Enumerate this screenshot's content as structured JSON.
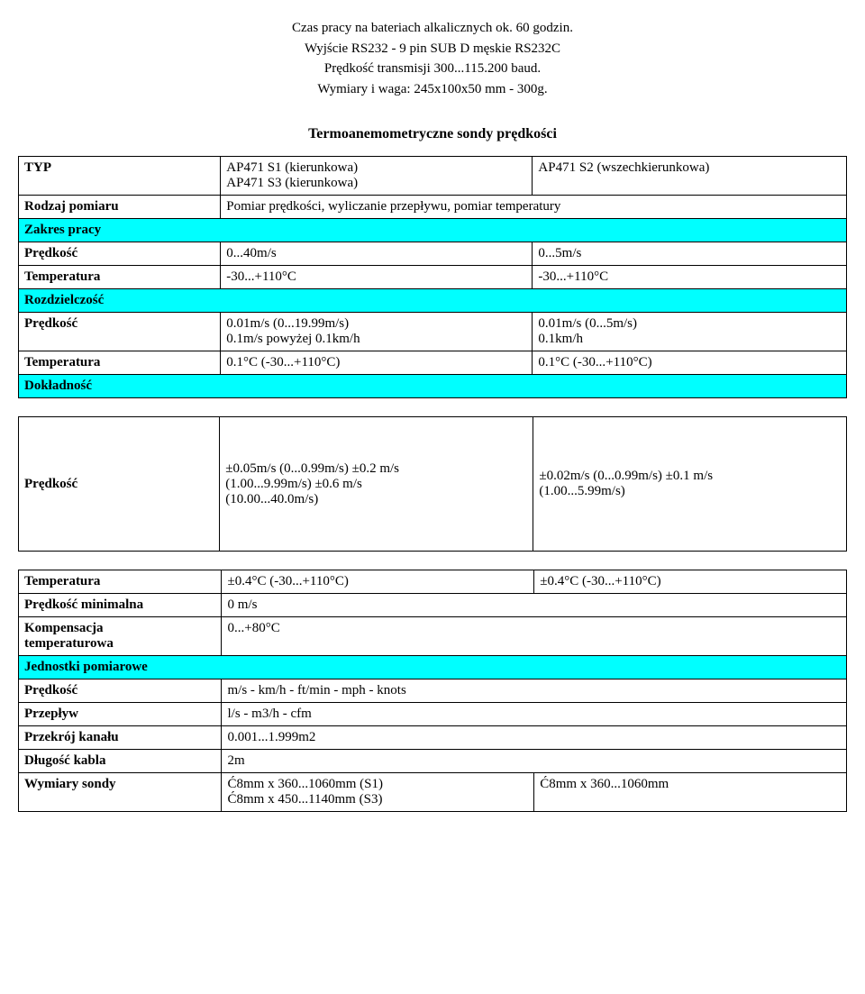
{
  "intro": {
    "line1": "Czas pracy na bateriach alkalicznych ok. 60 godzin.",
    "line2": "Wyjście RS232 - 9 pin SUB D męskie RS232C",
    "line3": "Prędkość transmisji 300...115.200 baud.",
    "line4": "Wymiary i waga: 245x100x50 mm - 300g."
  },
  "sectionTitle": "Termoanemometryczne sondy prędkości",
  "table1": {
    "r1": {
      "label": "TYP",
      "c2a": "AP471 S1 (kierunkowa)",
      "c2b": "AP471 S3 (kierunkowa)",
      "c3": "AP471 S2 (wszechkierunkowa)"
    },
    "r2": {
      "label": "Rodzaj pomiaru",
      "c2": "Pomiar prędkości, wyliczanie przepływu, pomiar temperatury"
    },
    "r3": {
      "label": "Zakres pracy"
    },
    "r4": {
      "label": "Prędkość",
      "c2": "0...40m/s",
      "c3": "0...5m/s"
    },
    "r5": {
      "label": "Temperatura",
      "c2": "-30...+110°C",
      "c3": "-30...+110°C"
    },
    "r6": {
      "label": "Rozdzielczość"
    },
    "r7": {
      "label": "Prędkość",
      "c2a": "0.01m/s (0...19.99m/s)",
      "c2b": "0.1m/s powyżej 0.1km/h",
      "c3a": "0.01m/s (0...5m/s)",
      "c3b": "0.1km/h"
    },
    "r8": {
      "label": "Temperatura",
      "c2": "0.1°C (-30...+110°C)",
      "c3": "0.1°C (-30...+110°C)"
    },
    "r9": {
      "label": "Dokładność"
    }
  },
  "table2": {
    "r1": {
      "label": "Prędkość",
      "c2a": "±0.05m/s (0...0.99m/s) ±0.2 m/s",
      "c2b": "(1.00...9.99m/s) ±0.6 m/s",
      "c2c": "(10.00...40.0m/s)",
      "c3a": "±0.02m/s (0...0.99m/s) ±0.1 m/s",
      "c3b": "(1.00...5.99m/s)"
    }
  },
  "table3": {
    "r1": {
      "label": "Temperatura",
      "c2": "±0.4°C (-30...+110°C)",
      "c3": "±0.4°C (-30...+110°C)"
    },
    "r2": {
      "label": "Prędkość minimalna",
      "c2": "0 m/s"
    },
    "r3": {
      "label1": "Kompensacja",
      "label2": "temperaturowa",
      "c2": "0...+80°C"
    },
    "r4": {
      "label": "Jednostki pomiarowe"
    },
    "r5": {
      "label": "Prędkość",
      "c2": "m/s - km/h - ft/min - mph - knots"
    },
    "r6": {
      "label": "Przepływ",
      "c2": "l/s - m3/h - cfm"
    },
    "r7": {
      "label": "Przekrój kanału",
      "c2": "0.001...1.999m2"
    },
    "r8": {
      "label": "Długość kabla",
      "c2": "2m"
    },
    "r9": {
      "label": "Wymiary sondy",
      "c2a": "Ć8mm x 360...1060mm (S1)",
      "c2b": "Ć8mm x 450...1140mm (S3)",
      "c3": "Ć8mm x 360...1060mm"
    }
  },
  "colors": {
    "headerBg": "#00ffff",
    "border": "#000000",
    "text": "#000000",
    "background": "#ffffff"
  }
}
